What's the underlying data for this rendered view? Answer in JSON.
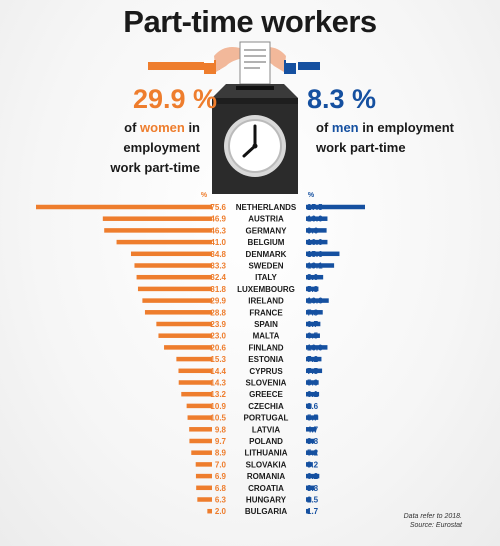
{
  "title": "Part-time workers",
  "women": {
    "pct": "29.9 %",
    "line1_pre": "of ",
    "line1_word": "women",
    "line1_post": " in employment",
    "line2": "work part-time"
  },
  "men": {
    "pct": "8.3 %",
    "line1_pre": "of ",
    "line1_word": "men",
    "line1_post": " in employment",
    "line2": "work part-time"
  },
  "axis_unit_left": "%",
  "axis_unit_right": "%",
  "note": {
    "line1": "Data refer to 2018.",
    "line2": "Source: Eurostat"
  },
  "colors": {
    "women": "#ee7d2d",
    "men": "#1550a0",
    "box": "#2b2b2b",
    "clock_face": "#ffffff"
  },
  "icons": [
    "ballot-box-icon",
    "clock-icon",
    "hands-icon",
    "document-icon"
  ],
  "chart_data": {
    "type": "bar",
    "orientation": "horizontal-diverging",
    "categories": [
      "NETHERLANDS",
      "AUSTRIA",
      "GERMANY",
      "BELGIUM",
      "DENMARK",
      "SWEDEN",
      "ITALY",
      "LUXEMBOURG",
      "IRELAND",
      "FRANCE",
      "SPAIN",
      "MALTA",
      "FINLAND",
      "ESTONIA",
      "CYPRUS",
      "SLOVENIA",
      "GREECE",
      "CZECHIA",
      "PORTUGAL",
      "LATVIA",
      "POLAND",
      "LITHUANIA",
      "SLOVAKIA",
      "ROMANIA",
      "CROATIA",
      "HUNGARY",
      "BULGARIA"
    ],
    "series": [
      {
        "values": [
          75.6,
          46.9,
          46.3,
          41.0,
          34.8,
          33.3,
          32.4,
          31.8,
          29.9,
          28.8,
          23.9,
          23.0,
          20.6,
          15.3,
          14.4,
          14.3,
          13.2,
          10.9,
          10.5,
          9.8,
          9.7,
          8.9,
          7.0,
          6.9,
          6.8,
          6.3,
          2.0
        ],
        "labels": [
          "75.6",
          "46.9",
          "46.3",
          "41.0",
          "34.8",
          "33.3",
          "32.4",
          "31.8",
          "29.9",
          "28.8",
          "23.9",
          "23.0",
          "20.6",
          "15.3",
          "14.4",
          "14.3",
          "13.2",
          "10.9",
          "10.5",
          "9.8",
          "9.7",
          "8.9",
          "7.0",
          "6.9",
          "6.8",
          "6.3",
          "2.0"
        ]
      },
      {
        "values": [
          27.5,
          10.0,
          9.6,
          10.0,
          15.6,
          13.1,
          8.0,
          5.8,
          10.6,
          7.8,
          6.7,
          6.5,
          10.0,
          7.2,
          7.5,
          5.9,
          6.1,
          2.6,
          5.7,
          4.7,
          3.8,
          5.2,
          3.2,
          6.2,
          3.8,
          2.5,
          1.7
        ],
        "labels": [
          "27.5",
          "10.0",
          "9.6",
          "10.0",
          "15.6",
          "13.1",
          "8.0",
          "5.8",
          "10.6",
          "7.8",
          "6.7",
          "6.5",
          "10.0",
          "7.2",
          "7.5",
          "5.9",
          "6.1",
          "2.6",
          "5.7",
          "4.7",
          "3.8",
          "5.2",
          "3.2",
          "6.2",
          "3.8",
          "2.5",
          "1.7"
        ]
      }
    ]
  }
}
